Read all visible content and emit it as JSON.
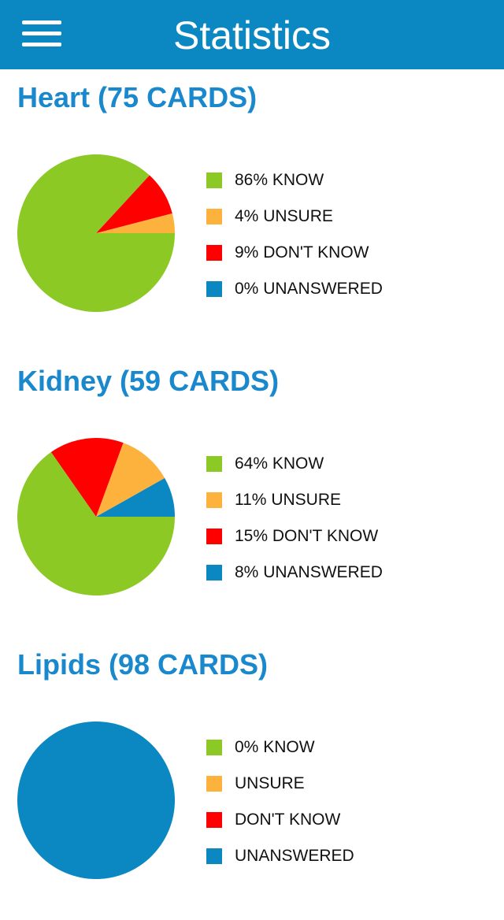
{
  "header": {
    "title": "Statistics",
    "menu_icon": "hamburger-menu-icon"
  },
  "colors": {
    "header_bg": "#0b88c2",
    "section_title": "#1a88cc",
    "know": "#8cc924",
    "unsure": "#fcb23d",
    "dont_know": "#fe0000",
    "unanswered": "#0b88c2"
  },
  "sections": [
    {
      "name": "Heart",
      "cards_label": "(75 CARDS)",
      "legend": [
        {
          "pct": "86%",
          "text": "KNOW"
        },
        {
          "pct": "4%",
          "text": "UNSURE"
        },
        {
          "pct": "9%",
          "text": "DON'T KNOW"
        },
        {
          "pct": "0%",
          "text": "UNANSWERED"
        }
      ]
    },
    {
      "name": "Kidney",
      "cards_label": "(59 CARDS)",
      "legend": [
        {
          "pct": "64%",
          "text": "KNOW"
        },
        {
          "pct": "11%",
          "text": "UNSURE"
        },
        {
          "pct": "15%",
          "text": "DON'T KNOW"
        },
        {
          "pct": "8%",
          "text": "UNANSWERED"
        }
      ]
    },
    {
      "name": "Lipids",
      "cards_label": "(98 CARDS)",
      "legend": [
        {
          "pct": "0%",
          "text": "KNOW"
        },
        {
          "pct": "",
          "text": "UNSURE"
        },
        {
          "pct": "",
          "text": "DON'T KNOW"
        },
        {
          "pct": "",
          "text": "UNANSWERED"
        }
      ]
    }
  ],
  "chart_data": [
    {
      "type": "pie",
      "title": "Heart (75 CARDS)",
      "categories": [
        "KNOW",
        "UNSURE",
        "DON'T KNOW",
        "UNANSWERED"
      ],
      "values": [
        86,
        4,
        9,
        0
      ]
    },
    {
      "type": "pie",
      "title": "Kidney (59 CARDS)",
      "categories": [
        "KNOW",
        "UNSURE",
        "DON'T KNOW",
        "UNANSWERED"
      ],
      "values": [
        64,
        11,
        15,
        8
      ]
    },
    {
      "type": "pie",
      "title": "Lipids (98 CARDS)",
      "categories": [
        "KNOW",
        "UNSURE",
        "DON'T KNOW",
        "UNANSWERED"
      ],
      "values": [
        0,
        0,
        0,
        100
      ]
    }
  ]
}
